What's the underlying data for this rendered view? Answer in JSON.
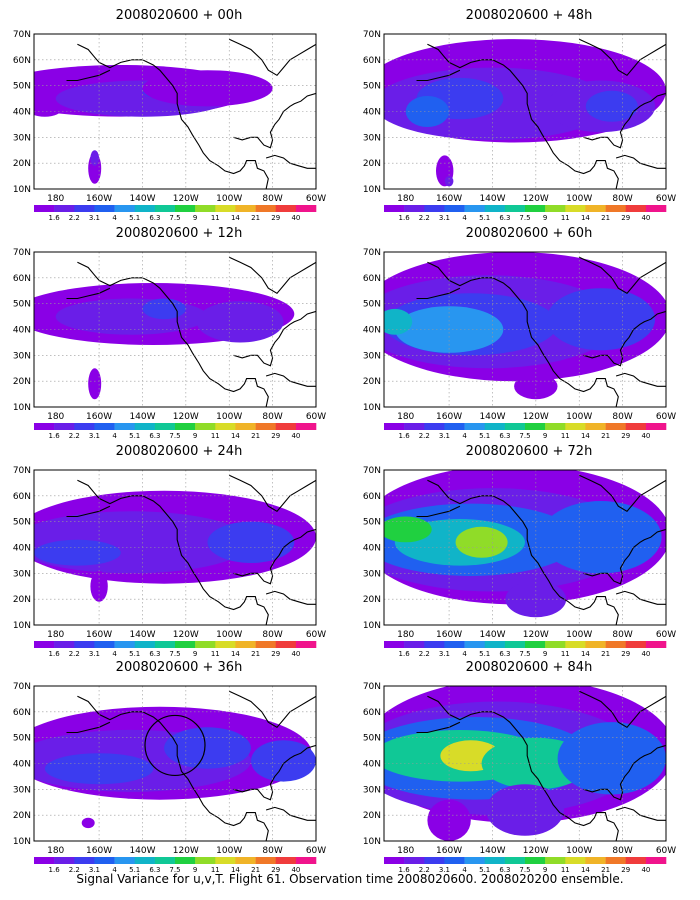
{
  "panels": [
    {
      "title": "2008020600 + 00h",
      "lead": "00h"
    },
    {
      "title": "2008020600 + 48h",
      "lead": "48h"
    },
    {
      "title": "2008020600 + 12h",
      "lead": "12h"
    },
    {
      "title": "2008020600 + 60h",
      "lead": "60h"
    },
    {
      "title": "2008020600 + 24h",
      "lead": "24h"
    },
    {
      "title": "2008020600 + 72h",
      "lead": "72h"
    },
    {
      "title": "2008020600 + 36h",
      "lead": "36h"
    },
    {
      "title": "2008020600 + 84h",
      "lead": "84h"
    }
  ],
  "axes": {
    "lat_labels": [
      "70N",
      "60N",
      "50N",
      "40N",
      "30N",
      "20N",
      "10N"
    ],
    "lon_labels": [
      "180",
      "160W",
      "140W",
      "120W",
      "100W",
      "80W",
      "60W"
    ]
  },
  "colorbar": {
    "labels": [
      "1.6",
      "2.2",
      "3.1",
      "4",
      "5.1",
      "6.3",
      "7.5",
      "9",
      "11",
      "14",
      "21",
      "29",
      "40"
    ],
    "colors": [
      "#8a00e6",
      "#6a1ee8",
      "#3c3cf0",
      "#2060f0",
      "#2896f0",
      "#10b4c8",
      "#10c896",
      "#20d040",
      "#90dc28",
      "#d8dc28",
      "#f0b428",
      "#f07828",
      "#f03c3c",
      "#f0148c"
    ]
  },
  "caption": "Signal Variance for u,v,T. Flight 61. Observation time 2008020600. 2008020200 ensemble."
}
